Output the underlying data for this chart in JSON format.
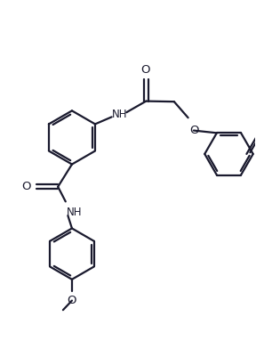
{
  "bg": "#ffffff",
  "lc": "#1a1a2e",
  "lw": 1.6,
  "figsize": [
    2.88,
    3.92
  ],
  "dpi": 100,
  "xlim": [
    0,
    10
  ],
  "ylim": [
    0,
    13.5
  ],
  "label_fs": 9.5,
  "nh_fs": 8.5
}
